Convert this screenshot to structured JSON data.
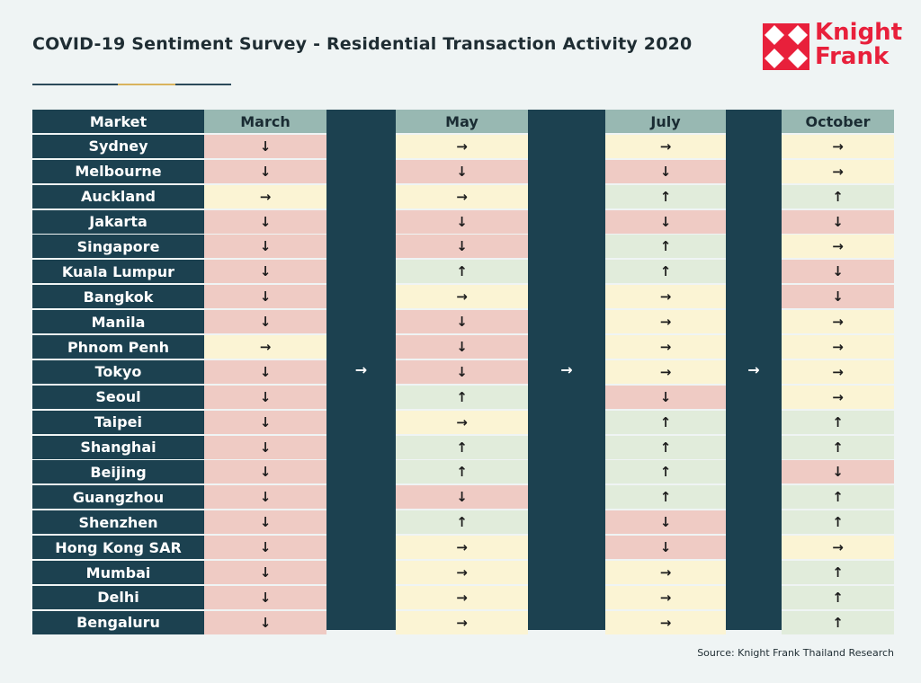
{
  "title": "COVID-19 Sentiment Survey - Residential Transaction Activity 2020",
  "logo": {
    "line1": "Knight",
    "line2": "Frank",
    "color": "#e8203b"
  },
  "source": "Source: Knight Frank Thailand Research",
  "colors": {
    "down": "#efcbc4",
    "flat": "#fbf4d4",
    "up": "#e1ecdb",
    "navy": "#1c4150",
    "header": "#98b8b2"
  },
  "arrow_glyphs": {
    "down": "↓",
    "flat": "→",
    "up": "↑"
  },
  "gap_arrow": "→",
  "chart_data": {
    "type": "table",
    "columns": [
      "Market",
      "March",
      "May",
      "July",
      "October"
    ],
    "rows": [
      {
        "market": "Sydney",
        "March": "down",
        "May": "flat",
        "July": "flat",
        "October": "flat"
      },
      {
        "market": "Melbourne",
        "March": "down",
        "May": "down",
        "July": "down",
        "October": "flat"
      },
      {
        "market": "Auckland",
        "March": "flat",
        "May": "flat",
        "July": "up",
        "October": "up"
      },
      {
        "market": "Jakarta",
        "March": "down",
        "May": "down",
        "July": "down",
        "October": "down"
      },
      {
        "market": "Singapore",
        "March": "down",
        "May": "down",
        "July": "up",
        "October": "flat"
      },
      {
        "market": "Kuala Lumpur",
        "March": "down",
        "May": "up",
        "July": "up",
        "October": "down"
      },
      {
        "market": "Bangkok",
        "March": "down",
        "May": "flat",
        "July": "flat",
        "October": "down"
      },
      {
        "market": "Manila",
        "March": "down",
        "May": "down",
        "July": "flat",
        "October": "flat"
      },
      {
        "market": "Phnom Penh",
        "March": "flat",
        "May": "down",
        "July": "flat",
        "October": "flat"
      },
      {
        "market": "Tokyo",
        "March": "down",
        "May": "down",
        "July": "flat",
        "October": "flat"
      },
      {
        "market": "Seoul",
        "March": "down",
        "May": "up",
        "July": "down",
        "October": "flat"
      },
      {
        "market": "Taipei",
        "March": "down",
        "May": "flat",
        "July": "up",
        "October": "up"
      },
      {
        "market": "Shanghai",
        "March": "down",
        "May": "up",
        "July": "up",
        "October": "up"
      },
      {
        "market": "Beijing",
        "March": "down",
        "May": "up",
        "July": "up",
        "October": "down"
      },
      {
        "market": "Guangzhou",
        "March": "down",
        "May": "down",
        "July": "up",
        "October": "up"
      },
      {
        "market": "Shenzhen",
        "March": "down",
        "May": "up",
        "July": "down",
        "October": "up"
      },
      {
        "market": "Hong Kong SAR",
        "March": "down",
        "May": "flat",
        "July": "down",
        "October": "flat"
      },
      {
        "market": "Mumbai",
        "March": "down",
        "May": "flat",
        "July": "flat",
        "October": "up"
      },
      {
        "market": "Delhi",
        "March": "down",
        "May": "flat",
        "July": "flat",
        "October": "up"
      },
      {
        "market": "Bengaluru",
        "March": "down",
        "May": "flat",
        "July": "flat",
        "October": "up"
      }
    ]
  }
}
